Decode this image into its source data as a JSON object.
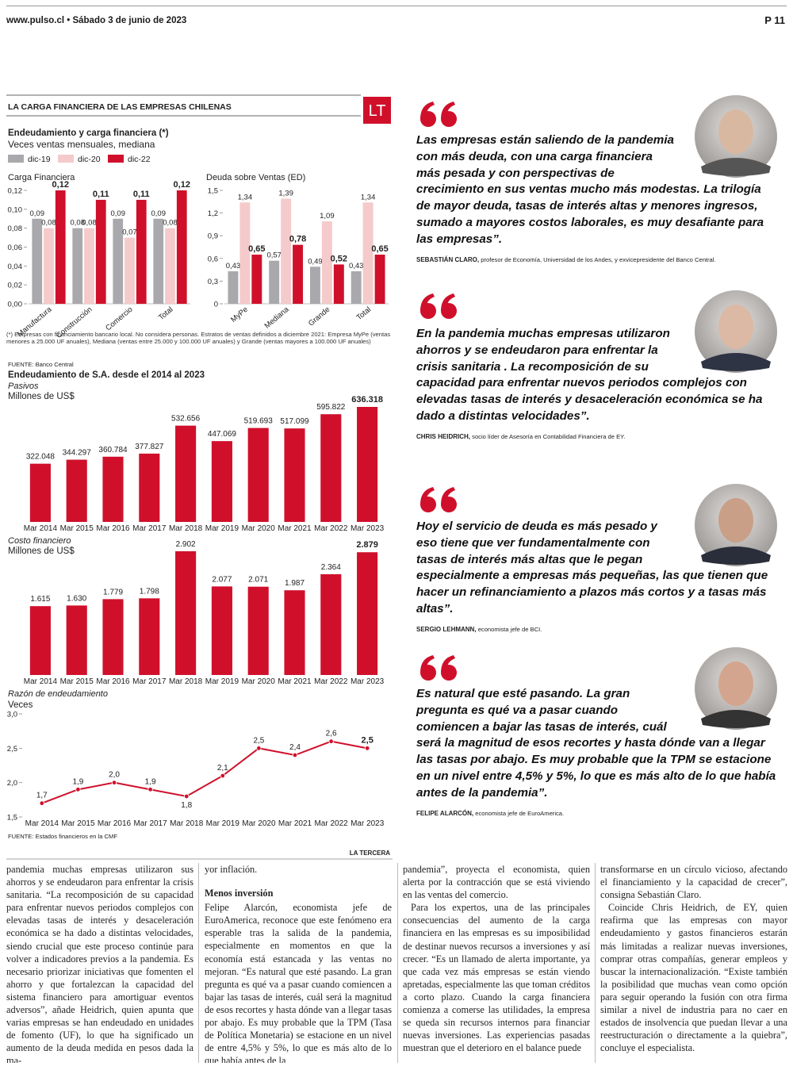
{
  "header": {
    "site": "www.pulso.cl • Sábado 3 de junio de 2023",
    "page": "P 11"
  },
  "infographic": {
    "title": "LA CARGA FINANCIERA DE LAS EMPRESAS CHILENAS",
    "logo": "LT",
    "heading": "Endeudamiento y carga financiera (*)",
    "subheading": "Veces ventas mensuales, mediana",
    "note": "(*) Empresas con financiamiento bancario local. No considera personas. Estratos de ventas definidos a diciembre 2021: Empresa MyPe (ventas menores a 25.000 UF anuales), Mediana (ventas entre 25.000 y 100.000 UF anuales) y Grande (ventas mayores a 100.000 UF anuales)",
    "source1": "FUENTE: Banco Central",
    "section_title": "Endeudamiento de S.A. desde el 2014 al 2023",
    "source2": "FUENTE: Estados financieros en la CMF",
    "credit": "LA TERCERA",
    "charts": [
      {
        "type": "bar",
        "title": "Carga Financiera",
        "categories": [
          "Manufactura",
          "Construcción",
          "Comercio",
          "Total"
        ],
        "series": [
          {
            "name": "dic-19",
            "color": "#a9a9ad",
            "values": [
              0.09,
              0.08,
              0.09,
              0.09
            ],
            "value_labels": [
              "0,09",
              "0,08",
              "0,09",
              "0,09"
            ]
          },
          {
            "name": "dic-20",
            "color": "#f5caca",
            "values": [
              0.08,
              0.08,
              0.07,
              0.08
            ],
            "value_labels": [
              "0,08",
              "0,08",
              "0,07",
              "0,08"
            ]
          },
          {
            "name": "dic-22",
            "color": "#d0102b",
            "values": [
              0.12,
              0.11,
              0.11,
              0.12
            ],
            "value_labels": [
              "0,12",
              "0,11",
              "0,11",
              "0,12"
            ]
          }
        ],
        "ylim": [
          0,
          0.12
        ],
        "yticks": [
          {
            "value": 0,
            "label": "0,00"
          },
          {
            "value": 0.02,
            "label": "0,02"
          },
          {
            "value": 0.04,
            "label": "0,04"
          },
          {
            "value": 0.06,
            "label": "0,06"
          },
          {
            "value": 0.08,
            "label": "0,08"
          },
          {
            "value": 0.1,
            "label": "0,10"
          },
          {
            "value": 0.12,
            "label": "0,12"
          }
        ]
      },
      {
        "type": "bar",
        "title": "Deuda sobre Ventas (ED)",
        "categories": [
          "MyPe",
          "Mediana",
          "Grande",
          "Total"
        ],
        "series": [
          {
            "name": "dic-19",
            "color": "#a9a9ad",
            "values": [
              0.43,
              0.57,
              0.49,
              0.43
            ],
            "value_labels": [
              "0,43",
              "0,57",
              "0,49",
              "0,43"
            ]
          },
          {
            "name": "dic-20",
            "color": "#f5caca",
            "values": [
              1.34,
              1.39,
              1.09,
              1.34
            ],
            "value_labels": [
              "1,34",
              "1,39",
              "1,09",
              "1,34"
            ]
          },
          {
            "name": "dic-22",
            "color": "#d0102b",
            "values": [
              0.65,
              0.78,
              0.52,
              0.65
            ],
            "value_labels": [
              "0,65",
              "0,78",
              "0,52",
              "0,65"
            ]
          }
        ],
        "ylim": [
          0,
          1.5
        ],
        "yticks": [
          0,
          {
            "value": 0.3,
            "label": "0,3"
          },
          {
            "value": 0.6,
            "label": "0,6"
          },
          {
            "value": 0.9,
            "label": "0,9"
          },
          {
            "value": 1.2,
            "label": "1,2"
          },
          {
            "value": 1.5,
            "label": "1,5"
          }
        ]
      },
      {
        "type": "bar",
        "title": "Pasivos",
        "unit": "Millones de US$",
        "color": "#d0102b",
        "categories": [
          "Mar 2014",
          "Mar 2015",
          "Mar 2016",
          "Mar 2017",
          "Mar 2018",
          "Mar 2019",
          "Mar 2020",
          "Mar 2021",
          "Mar 2022",
          "Mar 2023"
        ],
        "values": [
          322048,
          344297,
          360784,
          377827,
          532656,
          447069,
          519693,
          517099,
          595822,
          636318
        ],
        "value_labels": [
          "322.048",
          "344.297",
          "360.784",
          "377.827",
          "532.656",
          "447.069",
          "519.693",
          "517.099",
          "595.822",
          "636.318"
        ]
      },
      {
        "type": "bar",
        "title": "Costo financiero",
        "unit": "Millones de US$",
        "color": "#d0102b",
        "categories": [
          "Mar 2014",
          "Mar 2015",
          "Mar 2016",
          "Mar 2017",
          "Mar 2018",
          "Mar 2019",
          "Mar 2020",
          "Mar 2021",
          "Mar 2022",
          "Mar 2023"
        ],
        "values": [
          1615,
          1630,
          1779,
          1798,
          2902,
          2077,
          2071,
          1987,
          2364,
          2879
        ],
        "value_labels": [
          "1.615",
          "1.630",
          "1.779",
          "1.798",
          "2.902",
          "2.077",
          "2.071",
          "1.987",
          "2.364",
          "2.879"
        ]
      },
      {
        "type": "line",
        "title": "Razón de endeudamiento",
        "unit": "Veces",
        "color": "#d0102b",
        "categories": [
          "Mar 2014",
          "Mar 2015",
          "Mar 2016",
          "Mar 2017",
          "Mar 2018",
          "Mar 2019",
          "Mar 2020",
          "Mar 2021",
          "Mar 2022",
          "Mar 2023"
        ],
        "values": [
          1.7,
          1.9,
          2.0,
          1.9,
          1.8,
          2.1,
          2.5,
          2.4,
          2.6,
          2.5
        ],
        "value_labels": [
          "1,7",
          "1,9",
          "2,0",
          "1,9",
          "1,8",
          "2,1",
          "2,5",
          "2,4",
          "2,6",
          "2,5"
        ],
        "ylim": [
          1.5,
          3.0
        ],
        "yticks": [
          {
            "value": 1.5,
            "label": "1,5"
          },
          {
            "value": 2.0,
            "label": "2,0"
          },
          {
            "value": 2.5,
            "label": "2,5"
          },
          {
            "value": 3.0,
            "label": "3,0"
          }
        ]
      }
    ]
  },
  "quotes": [
    {
      "text": "Las empresas están saliendo de la pandemia con más deuda, con una carga financiera más pesada y con perspectivas de crecimiento en sus ventas mucho más modestas. La trilogía de mayor deuda, tasas de interés altas y menores ingresos, sumado a mayores costos laborales, es muy desafiante para las empresas”.",
      "name": "SEBASTIÁN CLARO,",
      "role": "profesor de Economía, Universidad de los Andes, y exvicepresidente del Banco Central."
    },
    {
      "text": "En la pandemia muchas empresas utilizaron ahorros y se endeudaron para enfrentar la crisis sanitaria . La recomposición de su capacidad para enfrentar nuevos periodos complejos con elevadas tasas de interés y desaceleración económica se ha dado a distintas velocidades”.",
      "name": "CHRIS HEIDRICH,",
      "role": "socio líder de Asesoría en Contabilidad Financiera de EY."
    },
    {
      "text": "Hoy el servicio de deuda es más pesado y eso tiene que ver fundamentalmente con tasas de interés más altas que le pegan especialmente a empresas más pequeñas, las que tienen que hacer un refinanciamiento a plazos más cortos y a tasas más altas”.",
      "name": "SERGIO LEHMANN,",
      "role": "economista jefe de BCI."
    },
    {
      "text": "Es natural que esté pasando. La gran pregunta es qué va a pasar cuando comiencen a bajar las tasas de interés, cuál será la magnitud de esos recortes y hasta dónde van a llegar las tasas por abajo. Es muy probable que la TPM se estacione en un nivel entre 4,5% y 5%, lo que es más alto de lo que había antes de la pandemia”.",
      "name": "FELIPE ALARCÓN,",
      "role": "economista jefe de EuroAmerica."
    }
  ],
  "article": {
    "col1": {
      "paragraphs": [
        "pandemia muchas empresas utilizaron sus ahorros y se endeudaron para enfrentar la crisis sanitaria. “La recomposición de su capacidad para enfrentar nuevos periodos complejos con elevadas tasas de interés y desaceleración económica se ha dado a distintas velocidades, siendo crucial que este proceso continúe para volver a indicadores previos a la pandemia. Es necesario priorizar iniciativas que fomenten el ahorro y que fortalezcan la capacidad del sistema financiero para amortiguar eventos adversos”, añade Heidrich, quien apunta que varias empresas se han endeudado en unidades de fomento (UF), lo que ha significado un aumento de la deuda medida en pesos dada la ma-"
      ]
    },
    "col2": {
      "lead": "yor inflación.",
      "subhead": "Menos inversión",
      "paragraphs": [
        "Felipe Alarcón, economista jefe de EuroAmerica, reconoce que este fenómeno era esperable tras la salida de la pandemia, especialmente en momentos en que la economía está estancada y las ventas no mejoran. “Es natural que esté pasando. La gran pregunta es qué va a pasar cuando comiencen a bajar las tasas de interés, cuál será la magnitud de esos recortes y hasta dónde van a llegar tasas por abajo. Es muy probable que la TPM (Tasa de Política Monetaria) se estacione en un nivel de entre 4,5% y 5%, lo que es más alto de lo que había antes de la"
      ]
    },
    "col3": {
      "paragraphs": [
        "pandemia”, proyecta el economista, quien alerta por la contracción que se está viviendo en las ventas del comercio.",
        "Para los expertos, una de las principales consecuencias del aumento de la carga financiera en las empresas es su imposibilidad de destinar nuevos recursos a inversiones y así crecer. “Es un llamado de alerta importante, ya que cada vez más empresas se están viendo apretadas, especialmente las que toman créditos a corto plazo. Cuando la carga financiera comienza a comerse las utilidades, la empresa se queda sin recursos internos para financiar nuevas inversiones. Las experiencias pasadas muestran que el deterioro en el balance puede"
      ]
    },
    "col4": {
      "paragraphs": [
        "transformarse en un círculo vicioso, afectando el financiamiento y la capacidad de crecer”, consigna Sebastián Claro.",
        "Coincide Chris Heidrich, de EY, quien reafirma que las empresas con mayor endeudamiento y gastos financieros estarán más limitadas a realizar nuevas inversiones, comprar otras compañías, generar empleos y buscar la internacionalización. “Existe también la posibilidad que muchas vean como opción para seguir operando la fusión con otra firma similar a nivel de industria para no caer en estados de insolvencia que puedan llevar a una reestructuración o directamente a la quiebra”, concluye el especialista."
      ]
    }
  }
}
